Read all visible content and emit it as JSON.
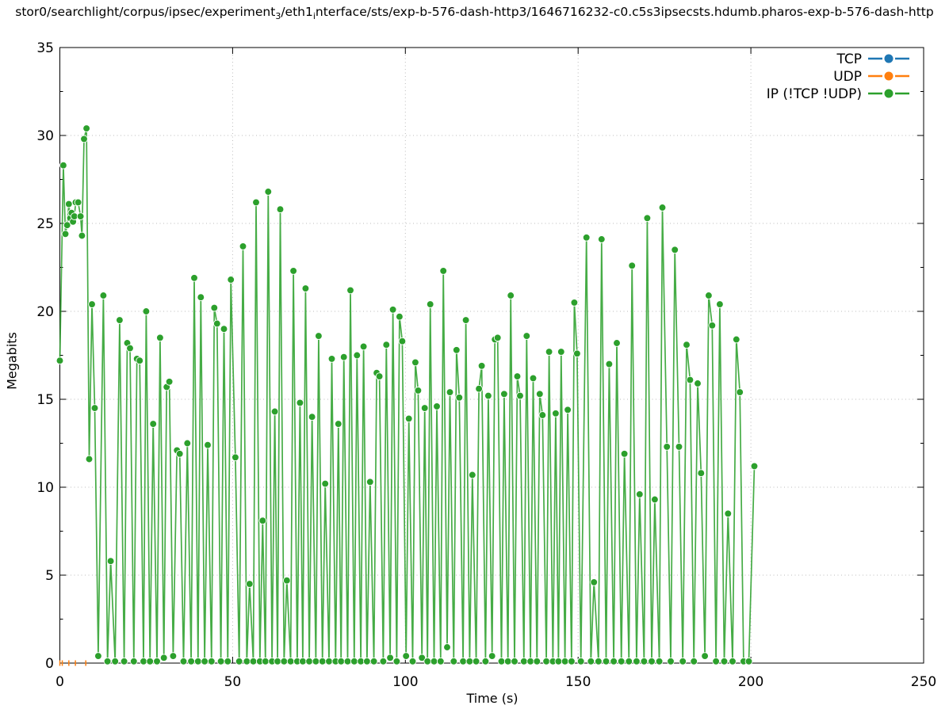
{
  "title": {
    "part1": "stor0/searchlight/corpus/ipsec/experiment",
    "sub1": "3",
    "part2": "/eth1",
    "sub2": "i",
    "part3": "nterface/sts/exp-b-576-dash-http3/1646716232-c0.c5s3ipsecsts.hdumb.pharos-exp-b-576-dash-http"
  },
  "axes": {
    "xlabel": "Time (s)",
    "ylabel": "Megabits",
    "xticks": [
      0,
      50,
      100,
      150,
      200,
      250
    ],
    "yticks": [
      0,
      5,
      10,
      15,
      20,
      25,
      30,
      35
    ],
    "xlim": [
      0,
      250
    ],
    "ylim": [
      0,
      35
    ]
  },
  "legend": [
    {
      "label": "TCP",
      "color": "#1f77b4"
    },
    {
      "label": "UDP",
      "color": "#ff7f0e"
    },
    {
      "label": "IP (!TCP  !UDP)",
      "color": "#2ca02c"
    }
  ],
  "chart_data": {
    "type": "line",
    "xlabel": "Time (s)",
    "ylabel": "Megabits",
    "xlim": [
      0,
      250
    ],
    "ylim": [
      0,
      35
    ],
    "grid": true,
    "legend_position": "top-right",
    "series": [
      {
        "name": "TCP",
        "color": "#1f77b4",
        "marker": "circle",
        "points": []
      },
      {
        "name": "UDP",
        "color": "#ff7f0e",
        "marker": "tick",
        "points": [
          [
            0,
            0
          ],
          [
            0.7,
            0
          ],
          [
            2.6,
            0
          ],
          [
            4.5,
            0
          ],
          [
            7.5,
            0
          ]
        ]
      },
      {
        "name": "IP (!TCP  !UDP)",
        "color": "#2ca02c",
        "marker": "circle",
        "points": [
          [
            0,
            17.2
          ],
          [
            1,
            28.3
          ],
          [
            1.6,
            24.4
          ],
          [
            2.1,
            24.9
          ],
          [
            2.6,
            26.1
          ],
          [
            3,
            25.3
          ],
          [
            3.4,
            25.6
          ],
          [
            3.8,
            25.1
          ],
          [
            4.2,
            25.4
          ],
          [
            4.6,
            26.2
          ],
          [
            5.3,
            26.2
          ],
          [
            6,
            25.4
          ],
          [
            6.4,
            24.3
          ],
          [
            7,
            29.8
          ],
          [
            7.7,
            30.4
          ],
          [
            8.5,
            11.6
          ],
          [
            9.3,
            20.4
          ],
          [
            10.1,
            14.5
          ],
          [
            11.1,
            0.4
          ],
          [
            12.6,
            20.9
          ],
          [
            13.8,
            0.1
          ],
          [
            14.7,
            5.8
          ],
          [
            16,
            0.1
          ],
          [
            17.3,
            19.5
          ],
          [
            18.6,
            0.1
          ],
          [
            19.5,
            18.2
          ],
          [
            20.3,
            17.9
          ],
          [
            21.4,
            0.1
          ],
          [
            22.3,
            17.3
          ],
          [
            23.1,
            17.2
          ],
          [
            24.2,
            0.1
          ],
          [
            25,
            20
          ],
          [
            26.1,
            0.1
          ],
          [
            27,
            13.6
          ],
          [
            28.1,
            0.1
          ],
          [
            29,
            18.5
          ],
          [
            30.1,
            0.3
          ],
          [
            30.9,
            15.7
          ],
          [
            31.7,
            16
          ],
          [
            32.8,
            0.4
          ],
          [
            33.9,
            12.1
          ],
          [
            34.7,
            11.9
          ],
          [
            35.8,
            0.1
          ],
          [
            36.9,
            12.5
          ],
          [
            38,
            0.1
          ],
          [
            38.9,
            21.9
          ],
          [
            40,
            0.1
          ],
          [
            40.8,
            20.8
          ],
          [
            41.9,
            0.1
          ],
          [
            42.8,
            12.4
          ],
          [
            43.9,
            0.1
          ],
          [
            44.7,
            20.2
          ],
          [
            45.5,
            19.3
          ],
          [
            46.6,
            0.1
          ],
          [
            47.5,
            19
          ],
          [
            48.6,
            0.1
          ],
          [
            49.5,
            21.8
          ],
          [
            50.8,
            11.7
          ],
          [
            51.9,
            0.1
          ],
          [
            53,
            23.7
          ],
          [
            54.1,
            0.1
          ],
          [
            54.9,
            4.5
          ],
          [
            56,
            0.1
          ],
          [
            56.8,
            26.2
          ],
          [
            57.9,
            0.1
          ],
          [
            58.7,
            8.1
          ],
          [
            59.5,
            0.1
          ],
          [
            60.3,
            26.8
          ],
          [
            61.4,
            0.1
          ],
          [
            62.2,
            14.3
          ],
          [
            63,
            0.1
          ],
          [
            63.8,
            25.8
          ],
          [
            64.9,
            0.1
          ],
          [
            65.7,
            4.7
          ],
          [
            66.8,
            0.1
          ],
          [
            67.6,
            22.3
          ],
          [
            68.7,
            0.1
          ],
          [
            69.5,
            14.8
          ],
          [
            70.3,
            0.1
          ],
          [
            71.1,
            21.3
          ],
          [
            72.2,
            0.1
          ],
          [
            73,
            14
          ],
          [
            74.1,
            0.1
          ],
          [
            74.9,
            18.6
          ],
          [
            76,
            0.1
          ],
          [
            76.8,
            10.2
          ],
          [
            77.9,
            0.1
          ],
          [
            78.7,
            17.3
          ],
          [
            79.8,
            0.1
          ],
          [
            80.6,
            13.6
          ],
          [
            81.4,
            0.1
          ],
          [
            82.2,
            17.4
          ],
          [
            83.3,
            0.1
          ],
          [
            84.1,
            21.2
          ],
          [
            85.2,
            0.1
          ],
          [
            86,
            17.5
          ],
          [
            87.1,
            0.1
          ],
          [
            87.9,
            18
          ],
          [
            88.9,
            0.1
          ],
          [
            89.8,
            10.3
          ],
          [
            90.9,
            0.1
          ],
          [
            91.7,
            16.5
          ],
          [
            92.5,
            16.3
          ],
          [
            93.6,
            0.1
          ],
          [
            94.5,
            18.1
          ],
          [
            95.6,
            0.3
          ],
          [
            96.4,
            20.1
          ],
          [
            97.5,
            0.1
          ],
          [
            98.3,
            19.7
          ],
          [
            99.1,
            18.3
          ],
          [
            100.2,
            0.4
          ],
          [
            101,
            13.9
          ],
          [
            102.1,
            0.1
          ],
          [
            102.9,
            17.1
          ],
          [
            103.7,
            15.5
          ],
          [
            104.8,
            0.3
          ],
          [
            105.6,
            14.5
          ],
          [
            106.4,
            0.1
          ],
          [
            107.2,
            20.4
          ],
          [
            108.3,
            0.1
          ],
          [
            109.1,
            14.6
          ],
          [
            110.2,
            0.1
          ],
          [
            111,
            22.3
          ],
          [
            112.1,
            0.9
          ],
          [
            112.9,
            15.4
          ],
          [
            114,
            0.1
          ],
          [
            114.8,
            17.8
          ],
          [
            115.6,
            15.1
          ],
          [
            116.7,
            0.1
          ],
          [
            117.5,
            19.5
          ],
          [
            118.6,
            0.1
          ],
          [
            119.4,
            10.7
          ],
          [
            120.5,
            0.1
          ],
          [
            121.3,
            15.6
          ],
          [
            122.1,
            16.9
          ],
          [
            123.2,
            0.1
          ],
          [
            124,
            15.2
          ],
          [
            125.1,
            0.4
          ],
          [
            125.9,
            18.4
          ],
          [
            126.7,
            18.5
          ],
          [
            127.8,
            0.1
          ],
          [
            128.6,
            15.3
          ],
          [
            129.7,
            0.1
          ],
          [
            130.5,
            20.9
          ],
          [
            131.6,
            0.1
          ],
          [
            132.4,
            16.3
          ],
          [
            133.2,
            15.2
          ],
          [
            134.3,
            0.1
          ],
          [
            135.1,
            18.6
          ],
          [
            136.2,
            0.1
          ],
          [
            137,
            16.2
          ],
          [
            138.1,
            0.1
          ],
          [
            138.9,
            15.3
          ],
          [
            139.7,
            14.1
          ],
          [
            140.8,
            0.1
          ],
          [
            141.6,
            17.7
          ],
          [
            142.7,
            0.1
          ],
          [
            143.5,
            14.2
          ],
          [
            144.3,
            0.1
          ],
          [
            145.1,
            17.7
          ],
          [
            146.2,
            0.1
          ],
          [
            147,
            14.4
          ],
          [
            148.1,
            0.1
          ],
          [
            148.9,
            20.5
          ],
          [
            149.7,
            17.6
          ],
          [
            150.8,
            0.1
          ],
          [
            152.4,
            24.2
          ],
          [
            153.7,
            0.1
          ],
          [
            154.6,
            4.6
          ],
          [
            155.9,
            0.1
          ],
          [
            156.8,
            24.1
          ],
          [
            158.1,
            0.1
          ],
          [
            159,
            17
          ],
          [
            160.3,
            0.1
          ],
          [
            161.2,
            18.2
          ],
          [
            162.5,
            0.1
          ],
          [
            163.4,
            11.9
          ],
          [
            164.7,
            0.1
          ],
          [
            165.6,
            22.6
          ],
          [
            166.9,
            0.1
          ],
          [
            167.8,
            9.6
          ],
          [
            169.1,
            0.1
          ],
          [
            170,
            25.3
          ],
          [
            171.3,
            0.1
          ],
          [
            172.2,
            9.3
          ],
          [
            173.5,
            0.1
          ],
          [
            174.4,
            25.9
          ],
          [
            175.7,
            12.3
          ],
          [
            176.8,
            0.1
          ],
          [
            178,
            23.5
          ],
          [
            179.2,
            12.3
          ],
          [
            180.3,
            0.1
          ],
          [
            181.4,
            18.1
          ],
          [
            182.4,
            16.1
          ],
          [
            183.5,
            0.1
          ],
          [
            184.6,
            15.9
          ],
          [
            185.6,
            10.8
          ],
          [
            186.7,
            0.4
          ],
          [
            187.8,
            20.9
          ],
          [
            188.8,
            19.2
          ],
          [
            189.9,
            0.1
          ],
          [
            191,
            20.4
          ],
          [
            192.3,
            0.1
          ],
          [
            193.4,
            8.5
          ],
          [
            194.7,
            0.1
          ],
          [
            195.8,
            18.4
          ],
          [
            196.8,
            15.4
          ],
          [
            197.9,
            0.1
          ],
          [
            199.4,
            0.1
          ],
          [
            201,
            11.2
          ]
        ]
      }
    ]
  }
}
